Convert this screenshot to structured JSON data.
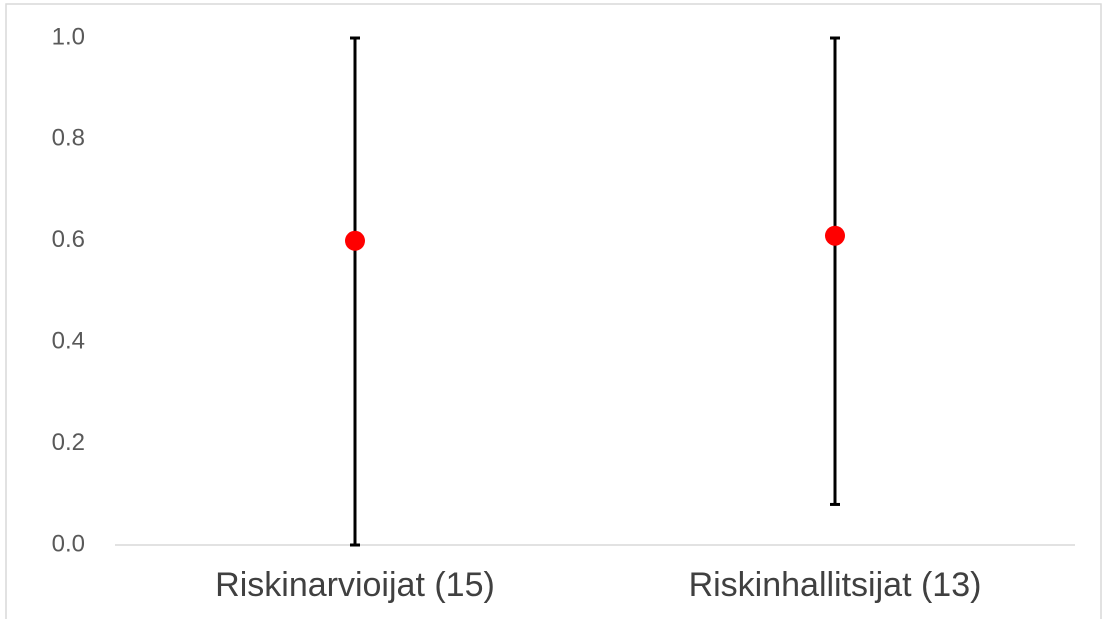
{
  "chart_data": {
    "type": "errorbar",
    "categories": [
      "Riskinarvioijat (15)",
      "Riskinhallitsijat (13)"
    ],
    "values": [
      0.6,
      0.61
    ],
    "lower": [
      0,
      0.08
    ],
    "upper": [
      1.0,
      1.0
    ],
    "color": "#ff0000",
    "bar_color": "#000000",
    "ylim": [
      0,
      1.0
    ],
    "yticks": [
      {
        "value": 0,
        "label": "0.0"
      },
      0.2,
      0.4,
      0.6,
      0.8,
      {
        "value": 1.0,
        "label": "1.0"
      }
    ],
    "grid": false
  }
}
